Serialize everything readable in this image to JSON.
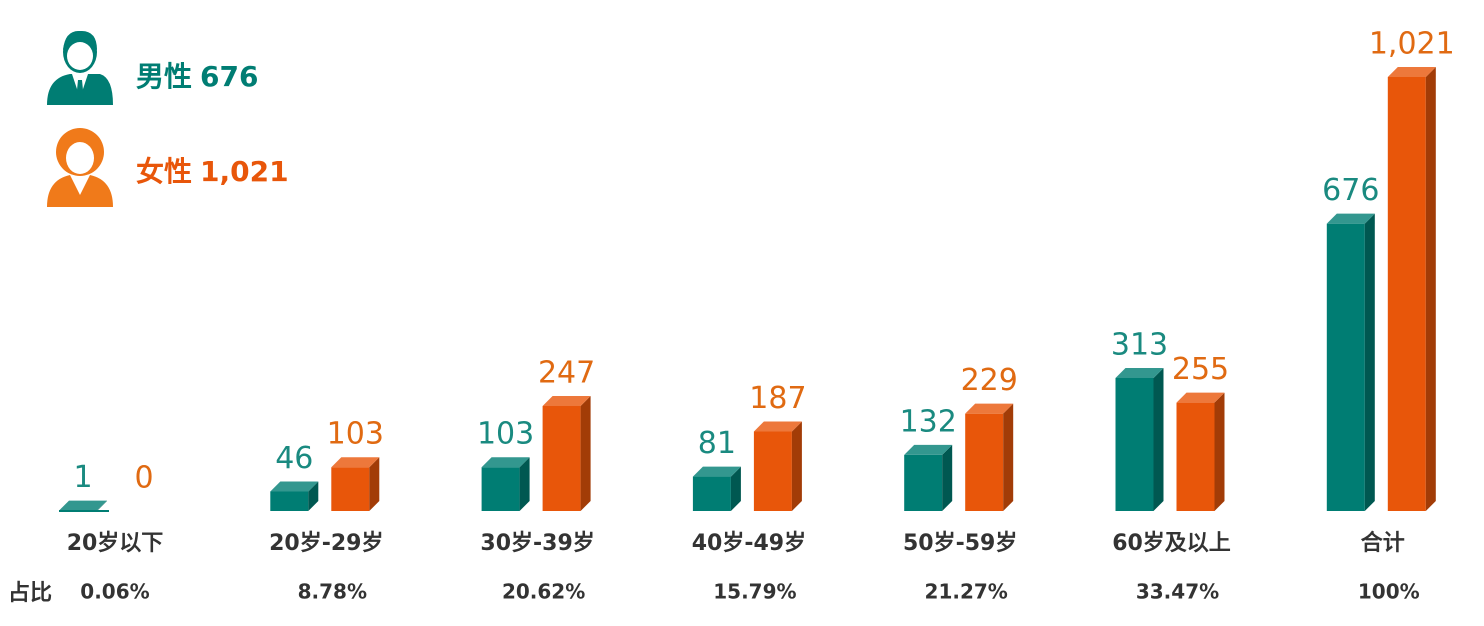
{
  "chart_data": {
    "type": "bar3d",
    "categories": [
      "20岁以下",
      "20岁-29岁",
      "30岁-39岁",
      "40岁-49岁",
      "50岁-59岁",
      "60岁及以上",
      "合计"
    ],
    "series": [
      {
        "name": "男性",
        "color": "#007d73",
        "label_color": "#1a8a80",
        "values": [
          1,
          46,
          103,
          81,
          132,
          313,
          676
        ],
        "value_labels": [
          "1",
          "46",
          "103",
          "81",
          "132",
          "313",
          "676"
        ]
      },
      {
        "name": "女性",
        "color": "#e8560a",
        "label_color": "#e06a12",
        "values": [
          0,
          103,
          247,
          187,
          229,
          255,
          1021
        ],
        "value_labels": [
          "0",
          "103",
          "247",
          "187",
          "229",
          "255",
          "1,021"
        ]
      }
    ],
    "share_row": {
      "label": "占比",
      "values": [
        "0.06%",
        "8.78%",
        "20.62%",
        "15.79%",
        "21.27%",
        "33.47%",
        "100%"
      ]
    }
  }
}
